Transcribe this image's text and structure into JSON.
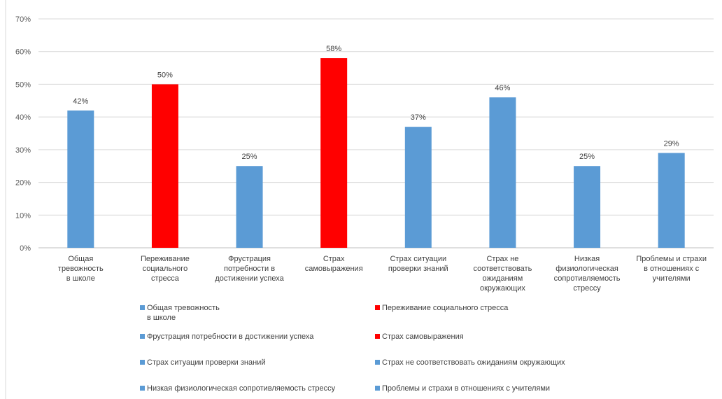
{
  "chart_data": {
    "type": "bar",
    "ylim": [
      0,
      70
    ],
    "yticks": [
      "0%",
      "10%",
      "20%",
      "30%",
      "40%",
      "50%",
      "60%",
      "70%"
    ],
    "grid": true,
    "legend_position": "bottom",
    "colors": {
      "blue": "#5b9bd5",
      "red": "#ff0000"
    },
    "categories": [
      "Общая тревожность в школе",
      "Переживание социального стресса",
      "Фрустрация потребности в достижении успеха",
      "Страх самовыражения",
      "Страх ситуации проверки знаний",
      "Страх не соответствовать ожиданиям окружающих",
      "Низкая физиологическая сопротивляемость стрессу",
      "Проблемы и страхи в отношениях с учителями"
    ],
    "category_lines": [
      [
        "Общая",
        "тревожность",
        "в школе"
      ],
      [
        "Переживание",
        "социального",
        "стресса"
      ],
      [
        "Фрустрация",
        "потребности в",
        "достижении успеха"
      ],
      [
        "Страх",
        "самовыражения"
      ],
      [
        "Страх ситуации",
        "проверки знаний"
      ],
      [
        "Страх не",
        "соответствовать",
        "ожиданиям",
        "окружающих"
      ],
      [
        "Низкая",
        "физиологическая",
        "сопротивляемость",
        "стрессу"
      ],
      [
        "Проблемы и страхи",
        "в отношениях с",
        "учителями"
      ]
    ],
    "values": [
      42,
      50,
      25,
      58,
      37,
      46,
      25,
      29
    ],
    "value_labels": [
      "42%",
      "50%",
      "25%",
      "58%",
      "37%",
      "46%",
      "25%",
      "29%"
    ],
    "bar_colors": [
      "#5b9bd5",
      "#ff0000",
      "#5b9bd5",
      "#ff0000",
      "#5b9bd5",
      "#5b9bd5",
      "#5b9bd5",
      "#5b9bd5"
    ]
  },
  "legend": {
    "items": [
      {
        "label_lines": [
          "Общая тревожность",
          "в школе"
        ],
        "color": "#5b9bd5"
      },
      {
        "label_lines": [
          "Переживание социального стресса"
        ],
        "color": "#ff0000"
      },
      {
        "label_lines": [
          "Фрустрация потребности в достижении успеха"
        ],
        "color": "#5b9bd5"
      },
      {
        "label_lines": [
          "Страх самовыражения"
        ],
        "color": "#ff0000"
      },
      {
        "label_lines": [
          "Страх ситуации проверки знаний"
        ],
        "color": "#5b9bd5"
      },
      {
        "label_lines": [
          "Страх не соответствовать ожиданиям окружающих"
        ],
        "color": "#5b9bd5"
      },
      {
        "label_lines": [
          "Низкая физиологическая сопротивляемость стрессу"
        ],
        "color": "#5b9bd5"
      },
      {
        "label_lines": [
          "Проблемы и страхи в отношениях с учителями"
        ],
        "color": "#5b9bd5"
      }
    ]
  }
}
